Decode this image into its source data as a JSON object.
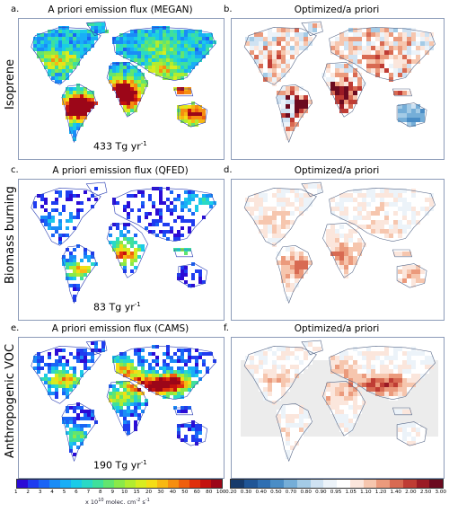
{
  "row_labels": [
    "Isoprene",
    "Biomass burning",
    "Anthropogenic VOC"
  ],
  "panels": [
    {
      "letter": "a.",
      "title": "A priori emission flux (MEGAN)",
      "total_value": "433 Tg yr",
      "total_exp": "-1",
      "kind": "prior",
      "intensity": "high"
    },
    {
      "letter": "b.",
      "title": "Optimized/a priori",
      "kind": "ratio",
      "intensity": "strong"
    },
    {
      "letter": "c.",
      "title": "A priori emission flux (QFED)",
      "total_value": "83 Tg yr",
      "total_exp": "-1",
      "kind": "prior",
      "intensity": "sparse"
    },
    {
      "letter": "d.",
      "title": "Optimized/a priori",
      "kind": "ratio",
      "intensity": "mild"
    },
    {
      "letter": "e.",
      "title": "A priori emission flux (CAMS)",
      "total_value": "190 Tg yr",
      "total_exp": "-1",
      "kind": "prior",
      "intensity": "anthro"
    },
    {
      "letter": "f.",
      "title": "Optimized/a priori",
      "kind": "ratio",
      "intensity": "anthro"
    }
  ],
  "colorbar_left": {
    "ticks": [
      "1",
      "2",
      "3",
      "4",
      "5",
      "6",
      "7",
      "8",
      "9",
      "10",
      "15",
      "20",
      "30",
      "40",
      "50",
      "60",
      "80",
      "100"
    ],
    "colors": [
      "#2b0bd6",
      "#1f3cf0",
      "#1a64f5",
      "#1a8cf7",
      "#19aef6",
      "#1acbe8",
      "#2ad9c6",
      "#3fe09c",
      "#62e56f",
      "#8ae949",
      "#b2ec2f",
      "#d8ec1f",
      "#f4dd15",
      "#f8b812",
      "#f68e10",
      "#ef5f0e",
      "#e0300c",
      "#c4110e",
      "#9c0618"
    ],
    "unit_prefix": "x 10",
    "unit_exp": "10",
    "unit_suffix": " molec. cm",
    "unit_exp2": "-2",
    "unit_s": " s",
    "unit_exp3": "-1"
  },
  "colorbar_right": {
    "ticks": [
      "0.20",
      "0.30",
      "0.40",
      "0.50",
      "0.70",
      "0.80",
      "0.90",
      "0.95",
      "1.05",
      "1.10",
      "1.20",
      "1.40",
      "2.00",
      "2.50",
      "3.00"
    ],
    "colors": [
      "#163a6b",
      "#1f5596",
      "#2f6fb2",
      "#4a8dc6",
      "#75aed8",
      "#a4cbe6",
      "#cfe2f2",
      "#ecf3f9",
      "#ffffff",
      "#fbe6dc",
      "#f6c6ae",
      "#eb9a7c",
      "#d86a52",
      "#bf3c34",
      "#9a1a25",
      "#6b0a1f"
    ]
  }
}
